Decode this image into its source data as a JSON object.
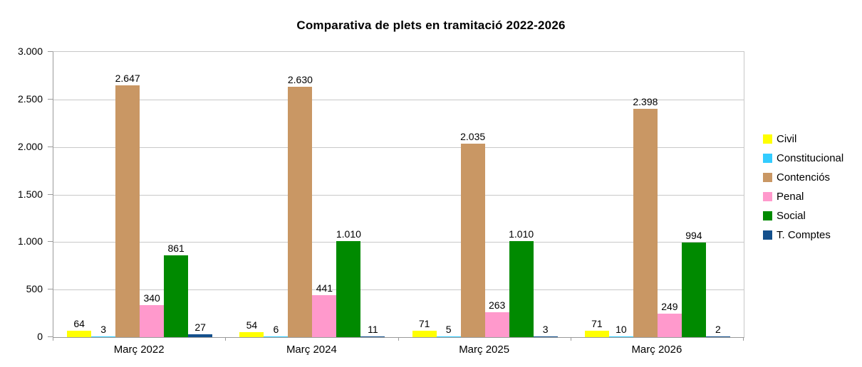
{
  "chart_data": {
    "type": "bar",
    "title": "Comparativa de plets en tramitació 2022-2026",
    "categories": [
      "Març 2022",
      "Març 2024",
      "Març 2025",
      "Març 2026"
    ],
    "series": [
      {
        "name": "Civil",
        "color": "#ffff00",
        "values": [
          64,
          54,
          71,
          71
        ],
        "labels": [
          "64",
          "54",
          "71",
          "71"
        ]
      },
      {
        "name": "Constitucional",
        "color": "#33ccff",
        "values": [
          3,
          6,
          5,
          10
        ],
        "labels": [
          "3",
          "6",
          "5",
          "10"
        ]
      },
      {
        "name": "Contenciós",
        "color": "#c99764",
        "values": [
          2647,
          2630,
          2035,
          2398
        ],
        "labels": [
          "2.647",
          "2.630",
          "2.035",
          "2.398"
        ]
      },
      {
        "name": "Penal",
        "color": "#ff99cc",
        "values": [
          340,
          441,
          263,
          249
        ],
        "labels": [
          "340",
          "441",
          "263",
          "249"
        ]
      },
      {
        "name": "Social",
        "color": "#008a00",
        "values": [
          861,
          1010,
          1010,
          994
        ],
        "labels": [
          "861",
          "1.010",
          "1.010",
          "994"
        ]
      },
      {
        "name": "T. Comptes",
        "color": "#14508c",
        "values": [
          27,
          11,
          3,
          2
        ],
        "labels": [
          "27",
          "11",
          "3",
          "2"
        ]
      }
    ],
    "xlabel": "",
    "ylabel": "",
    "ylim": [
      0,
      3000
    ],
    "ytick_step": 500,
    "ytick_labels": [
      "0",
      "500",
      "1.000",
      "1.500",
      "2.000",
      "2.500",
      "3.000"
    ],
    "grid": true,
    "legend_position": "right",
    "background_color": "#ffffff",
    "gridline_color": "#c8c8c8",
    "axis_color": "#9a9a9a",
    "value_label_color": "#000000"
  }
}
